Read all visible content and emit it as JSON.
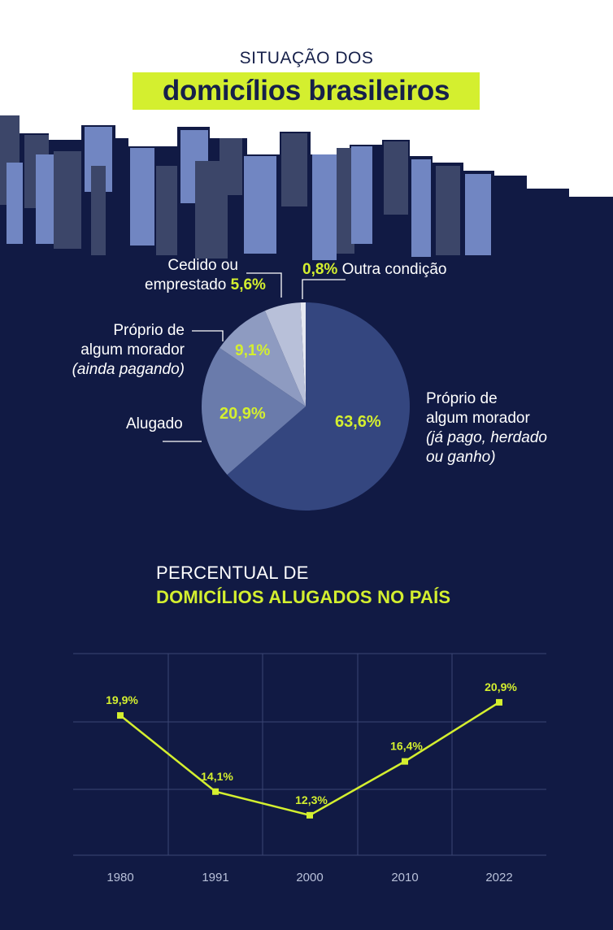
{
  "header": {
    "title_small": "SITUAÇÃO DOS",
    "title_big": "domicílios brasileiros"
  },
  "colors": {
    "background": "#111a44",
    "accent": "#d4ef2f",
    "building_dark": "#3c4669",
    "building_light": "#7186c2",
    "slice_main": "#34467f",
    "slice_rented": "#6a7bab",
    "slice_paying": "#8e9bc1",
    "slice_lent": "#b8c0d9",
    "slice_other": "#e6e9f2"
  },
  "pie_labels": {
    "owned_paid": {
      "line1": "Próprio de",
      "line2": "algum morador",
      "line3": "(já pago, herdado",
      "line4": "ou ganho)",
      "value": "63,6%"
    },
    "rented": {
      "line1": "Alugado",
      "value": "20,9%"
    },
    "owned_paying": {
      "line1": "Próprio de",
      "line2": "algum morador",
      "line3": "(ainda pagando)",
      "value": "9,1%"
    },
    "lent": {
      "line1": "Cedido ou",
      "line2": "emprestado",
      "value": "5,6%"
    },
    "other": {
      "line1": "Outra condição",
      "value": "0,8%"
    }
  },
  "section": {
    "title1": "PERCENTUAL DE",
    "title2": "DOMICÍLIOS ALUGADOS NO PAÍS"
  },
  "chart_data": [
    {
      "type": "pie",
      "title": "",
      "slices": [
        {
          "label": "Próprio de algum morador (já pago, herdado ou ganho)",
          "value": 63.6
        },
        {
          "label": "Alugado",
          "value": 20.9
        },
        {
          "label": "Próprio de algum morador (ainda pagando)",
          "value": 9.1
        },
        {
          "label": "Cedido ou emprestado",
          "value": 5.6
        },
        {
          "label": "Outra condição",
          "value": 0.8
        }
      ]
    },
    {
      "type": "line",
      "title": "PERCENTUAL DE DOMICÍLIOS ALUGADOS NO PAÍS",
      "categories": [
        "1980",
        "1991",
        "2000",
        "2010",
        "2022"
      ],
      "values": [
        19.9,
        14.1,
        12.3,
        16.4,
        20.9
      ],
      "value_labels": [
        "19,9%",
        "14,1%",
        "12,3%",
        "16,4%",
        "20,9%"
      ],
      "ylim": [
        10,
        23
      ],
      "grid": true
    }
  ]
}
